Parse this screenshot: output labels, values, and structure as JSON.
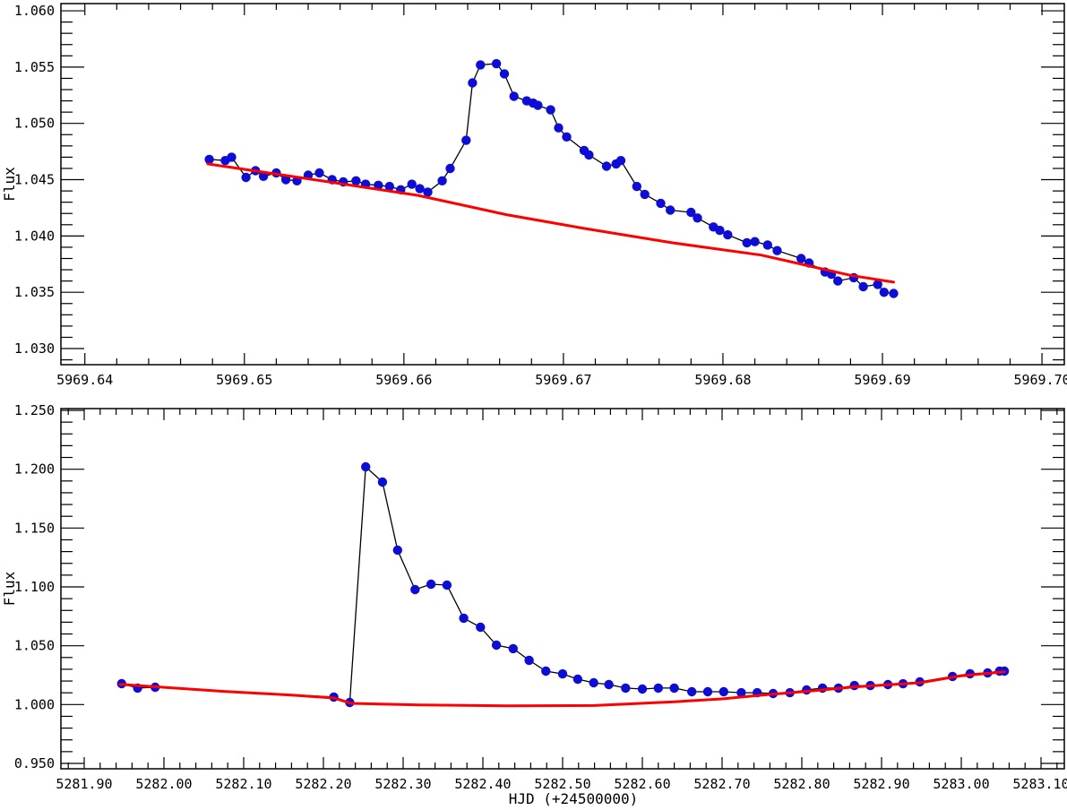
{
  "figure": {
    "background": "#ffffff",
    "frame_color": "#000000",
    "description": "Two stacked light-curve panels: stellar flux versus Heliocentric Julian Date with observed data (blue points, black line) and quiescent model fit (red line)"
  },
  "chart_data": [
    {
      "type": "line",
      "name": "top-light-curve",
      "title": "",
      "xlabel": "",
      "ylabel": "Flux",
      "grid": false,
      "legend": "none",
      "x_axis": {
        "range": [
          5969.6385,
          5969.7014
        ],
        "major_ticks": [
          5969.64,
          5969.65,
          5969.66,
          5969.67,
          5969.68,
          5969.69,
          5969.7
        ],
        "labels": [
          "5969.64",
          "5969.65",
          "5969.66",
          "5969.67",
          "5969.68",
          "5969.69",
          "5969.70"
        ],
        "minor_step": 0.002
      },
      "y_axis": {
        "range": [
          1.02857,
          1.06064
        ],
        "major_ticks": [
          1.03,
          1.035,
          1.04,
          1.045,
          1.05,
          1.055,
          1.06
        ],
        "labels": [
          "1.030",
          "1.035",
          "1.040",
          "1.045",
          "1.050",
          "1.055",
          "1.060"
        ],
        "minor_step": 0.001
      },
      "series": [
        {
          "name": "observed flux",
          "style": "line+markers",
          "line_color": "#000000",
          "marker_color": "#0d0dd6",
          "points": [
            [
              5969.6478,
              1.0468
            ],
            [
              5969.6488,
              1.0467
            ],
            [
              5969.6492,
              1.047
            ],
            [
              5969.6501,
              1.0452
            ],
            [
              5969.6507,
              1.0458
            ],
            [
              5969.6512,
              1.0453
            ],
            [
              5969.652,
              1.0456
            ],
            [
              5969.6526,
              1.045
            ],
            [
              5969.6533,
              1.0449
            ],
            [
              5969.654,
              1.0454
            ],
            [
              5969.6547,
              1.0456
            ],
            [
              5969.6555,
              1.045
            ],
            [
              5969.6562,
              1.0448
            ],
            [
              5969.657,
              1.0449
            ],
            [
              5969.6576,
              1.0446
            ],
            [
              5969.6584,
              1.0445
            ],
            [
              5969.6591,
              1.0444
            ],
            [
              5969.6598,
              1.0441
            ],
            [
              5969.6605,
              1.0446
            ],
            [
              5969.661,
              1.0442
            ],
            [
              5969.6615,
              1.0439
            ],
            [
              5969.6624,
              1.0449
            ],
            [
              5969.6629,
              1.046
            ],
            [
              5969.6639,
              1.0485
            ],
            [
              5969.6643,
              1.0536
            ],
            [
              5969.6648,
              1.0552
            ],
            [
              5969.6658,
              1.0553
            ],
            [
              5969.6663,
              1.0544
            ],
            [
              5969.6669,
              1.0524
            ],
            [
              5969.6677,
              1.052
            ],
            [
              5969.6681,
              1.0518
            ],
            [
              5969.6684,
              1.0516
            ],
            [
              5969.6692,
              1.0512
            ],
            [
              5969.6697,
              1.0496
            ],
            [
              5969.6702,
              1.0488
            ],
            [
              5969.6713,
              1.0476
            ],
            [
              5969.6716,
              1.0472
            ],
            [
              5969.6727,
              1.0462
            ],
            [
              5969.6733,
              1.0464
            ],
            [
              5969.6736,
              1.0467
            ],
            [
              5969.6746,
              1.0444
            ],
            [
              5969.6751,
              1.0437
            ],
            [
              5969.6761,
              1.0429
            ],
            [
              5969.6767,
              1.0423
            ],
            [
              5969.678,
              1.0421
            ],
            [
              5969.6784,
              1.0416
            ],
            [
              5969.6794,
              1.0408
            ],
            [
              5969.6798,
              1.0405
            ],
            [
              5969.6803,
              1.0401
            ],
            [
              5969.6815,
              1.0394
            ],
            [
              5969.682,
              1.0395
            ],
            [
              5969.6828,
              1.0392
            ],
            [
              5969.6834,
              1.0387
            ],
            [
              5969.6849,
              1.038
            ],
            [
              5969.6854,
              1.0376
            ],
            [
              5969.6864,
              1.0368
            ],
            [
              5969.6868,
              1.0366
            ],
            [
              5969.6872,
              1.036
            ],
            [
              5969.6882,
              1.0363
            ],
            [
              5969.6888,
              1.0355
            ],
            [
              5969.6897,
              1.0357
            ],
            [
              5969.6901,
              1.035
            ],
            [
              5969.6907,
              1.0349
            ]
          ]
        },
        {
          "name": "quiescent fit",
          "style": "line",
          "line_color": "#ff0000",
          "points": [
            [
              5969.6477,
              1.0464
            ],
            [
              5969.6553,
              1.0448
            ],
            [
              5969.6609,
              1.0436
            ],
            [
              5969.6664,
              1.0419
            ],
            [
              5969.6712,
              1.0407
            ],
            [
              5969.6768,
              1.0394
            ],
            [
              5969.6824,
              1.0383
            ],
            [
              5969.6852,
              1.0374
            ],
            [
              5969.688,
              1.0365
            ],
            [
              5969.6907,
              1.0359
            ]
          ]
        }
      ]
    },
    {
      "type": "line",
      "name": "bottom-light-curve",
      "title": "",
      "xlabel": "HJD (+24500000)",
      "ylabel": "Flux",
      "grid": false,
      "legend": "none",
      "x_axis": {
        "range": [
          5281.8708,
          5283.1292
        ],
        "major_ticks": [
          5281.9,
          5282.0,
          5282.1,
          5282.2,
          5282.3,
          5282.4,
          5282.5,
          5282.6,
          5282.7,
          5282.8,
          5282.9,
          5283.0,
          5283.1
        ],
        "labels": [
          "5281.90",
          "5282.00",
          "5282.10",
          "5282.20",
          "5282.30",
          "5282.40",
          "5282.50",
          "5282.60",
          "5282.70",
          "5282.80",
          "5282.90",
          "5283.00",
          "5283.10"
        ],
        "minor_step": 0.02
      },
      "y_axis": {
        "range": [
          0.94543,
          1.25152
        ],
        "major_ticks": [
          0.95,
          1.0,
          1.05,
          1.1,
          1.15,
          1.2,
          1.25
        ],
        "labels": [
          "0.950",
          "1.000",
          "1.050",
          "1.100",
          "1.150",
          "1.200",
          "1.250"
        ],
        "minor_step": 0.01
      },
      "series": [
        {
          "name": "observed flux",
          "style": "line+markers",
          "line_color": "#000000",
          "marker_color": "#0d0dd6",
          "points": [
            [
              5281.947,
              1.0178
            ],
            [
              5281.967,
              1.014
            ],
            [
              5281.989,
              1.0147
            ],
            [
              5282.213,
              1.0064
            ],
            [
              5282.233,
              1.0018
            ],
            [
              5282.253,
              1.202
            ],
            [
              5282.274,
              1.1891
            ],
            [
              5282.293,
              1.1312
            ],
            [
              5282.315,
              1.0977
            ],
            [
              5282.335,
              1.1023
            ],
            [
              5282.355,
              1.1015
            ],
            [
              5282.376,
              1.0734
            ],
            [
              5282.397,
              1.0657
            ],
            [
              5282.417,
              1.0505
            ],
            [
              5282.438,
              1.0475
            ],
            [
              5282.458,
              1.0376
            ],
            [
              5282.479,
              1.0284
            ],
            [
              5282.5,
              1.0261
            ],
            [
              5282.519,
              1.0216
            ],
            [
              5282.539,
              1.0185
            ],
            [
              5282.558,
              1.017
            ],
            [
              5282.579,
              1.014
            ],
            [
              5282.6,
              1.0132
            ],
            [
              5282.62,
              1.014
            ],
            [
              5282.64,
              1.014
            ],
            [
              5282.662,
              1.0109
            ],
            [
              5282.682,
              1.0109
            ],
            [
              5282.702,
              1.0109
            ],
            [
              5282.724,
              1.0101
            ],
            [
              5282.744,
              1.0101
            ],
            [
              5282.764,
              1.0094
            ],
            [
              5282.785,
              1.0101
            ],
            [
              5282.806,
              1.0124
            ],
            [
              5282.826,
              1.014
            ],
            [
              5282.846,
              1.014
            ],
            [
              5282.866,
              1.0162
            ],
            [
              5282.886,
              1.0162
            ],
            [
              5282.908,
              1.017
            ],
            [
              5282.927,
              1.0177
            ],
            [
              5282.948,
              1.0193
            ],
            [
              5282.989,
              1.0239
            ],
            [
              5283.011,
              1.0262
            ],
            [
              5283.033,
              1.0269
            ],
            [
              5283.048,
              1.0284
            ],
            [
              5283.054,
              1.0284
            ]
          ]
        },
        {
          "name": "quiescent fit",
          "style": "line",
          "line_color": "#ff0000",
          "points": [
            [
              5281.945,
              1.0172
            ],
            [
              5282.075,
              1.0112
            ],
            [
              5282.16,
              1.008
            ],
            [
              5282.213,
              1.0056
            ],
            [
              5282.235,
              1.001
            ],
            [
              5282.32,
              0.9997
            ],
            [
              5282.43,
              0.9989
            ],
            [
              5282.54,
              0.9992
            ],
            [
              5282.64,
              1.0024
            ],
            [
              5282.7,
              1.0048
            ],
            [
              5282.75,
              1.008
            ],
            [
              5282.806,
              1.0112
            ],
            [
              5282.866,
              1.015
            ],
            [
              5282.948,
              1.0185
            ],
            [
              5283.0,
              1.0245
            ],
            [
              5283.054,
              1.0278
            ]
          ]
        }
      ]
    }
  ]
}
